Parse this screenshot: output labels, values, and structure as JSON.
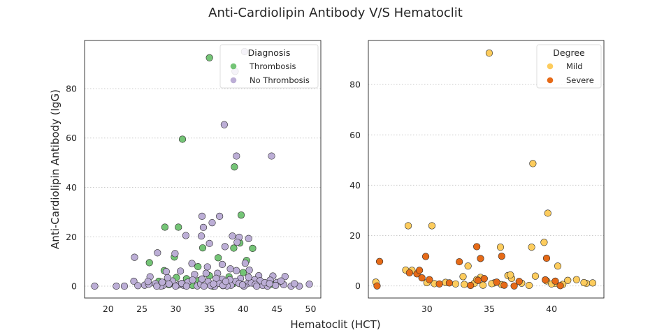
{
  "figure": {
    "suptitle": "Anti-Cardiolipin Antibody V/S Hematoclit",
    "supxlabel": "Hematoclit (HCT)",
    "background": "#ffffff"
  },
  "chart_data": [
    {
      "type": "scatter",
      "ylabel": "Anti-Cardiolipin Antibody (IgG)",
      "xlim": [
        16.5,
        51.5
      ],
      "ylim": [
        -4.8,
        99.5
      ],
      "xticks": [
        20,
        25,
        30,
        35,
        40,
        45,
        50
      ],
      "yticks": [
        0,
        20,
        40,
        60,
        80
      ],
      "grid": "horizontal-dotted",
      "legend": {
        "title": "Diagnosis",
        "placement": "top-right"
      },
      "series": [
        {
          "name": "Thrombosis",
          "color": "#74c476",
          "points": [
            [
              35.0,
              92.5
            ],
            [
              31.0,
              59.5
            ],
            [
              38.7,
              48.3
            ],
            [
              39.7,
              28.8
            ],
            [
              28.4,
              23.9
            ],
            [
              30.4,
              23.9
            ],
            [
              34.0,
              15.5
            ],
            [
              36.3,
              11.5
            ],
            [
              39.5,
              17.5
            ],
            [
              38.6,
              15.4
            ],
            [
              40.5,
              10.4
            ],
            [
              41.4,
              15.3
            ],
            [
              33.3,
              7.9
            ],
            [
              26.1,
              9.5
            ],
            [
              28.3,
              6.3
            ],
            [
              29.8,
              11.8
            ],
            [
              37.9,
              3.8
            ],
            [
              30.1,
              3.5
            ],
            [
              31.6,
              3.0
            ],
            [
              33.4,
              2.2
            ],
            [
              35.0,
              4.2
            ],
            [
              41.0,
              2.0
            ],
            [
              36.5,
              1.5
            ],
            [
              42.0,
              0.5
            ],
            [
              44.2,
              0.8
            ],
            [
              37.0,
              0.2
            ],
            [
              29.0,
              0.6
            ],
            [
              32.5,
              0.3
            ],
            [
              38.5,
              1.0
            ],
            [
              35.5,
              0.0
            ],
            [
              40.0,
              5.5
            ],
            [
              27.5,
              2.0
            ]
          ]
        },
        {
          "name": "No Thrombosis",
          "color": "#bcaed6",
          "points": [
            [
              37.2,
              65.4
            ],
            [
              39.0,
              52.7
            ],
            [
              44.2,
              52.7
            ],
            [
              38.8,
              87.0
            ],
            [
              40.2,
              95.0
            ],
            [
              33.9,
              28.3
            ],
            [
              35.4,
              25.7
            ],
            [
              34.1,
              23.8
            ],
            [
              36.5,
              28.3
            ],
            [
              31.5,
              20.5
            ],
            [
              33.8,
              20.3
            ],
            [
              38.4,
              20.3
            ],
            [
              39.4,
              19.8
            ],
            [
              40.8,
              19.3
            ],
            [
              35.0,
              17.3
            ],
            [
              37.3,
              16.0
            ],
            [
              39.1,
              17.8
            ],
            [
              23.9,
              11.7
            ],
            [
              27.3,
              13.5
            ],
            [
              29.9,
              13.2
            ],
            [
              32.4,
              9.2
            ],
            [
              34.7,
              7.8
            ],
            [
              36.9,
              8.8
            ],
            [
              40.3,
              9.3
            ],
            [
              26.2,
              3.8
            ],
            [
              28.6,
              5.9
            ],
            [
              30.7,
              6.1
            ],
            [
              32.8,
              4.7
            ],
            [
              34.5,
              5.2
            ],
            [
              36.2,
              5.2
            ],
            [
              39.0,
              6.3
            ],
            [
              40.9,
              6.5
            ],
            [
              42.3,
              4.2
            ],
            [
              44.4,
              4.1
            ],
            [
              46.2,
              3.9
            ],
            [
              45.0,
              1.5
            ],
            [
              18.0,
              0.0
            ],
            [
              21.2,
              0.0
            ],
            [
              22.4,
              0.0
            ],
            [
              23.8,
              2.0
            ],
            [
              25.4,
              0.4
            ],
            [
              27.0,
              1.0
            ],
            [
              28.1,
              0.2
            ],
            [
              29.5,
              2.1
            ],
            [
              30.4,
              0.5
            ],
            [
              31.8,
              1.6
            ],
            [
              33.2,
              0.1
            ],
            [
              34.8,
              1.8
            ],
            [
              35.8,
              0.0
            ],
            [
              36.9,
              2.8
            ],
            [
              38.2,
              0.4
            ],
            [
              39.6,
              3.1
            ],
            [
              40.6,
              1.0
            ],
            [
              41.7,
              2.6
            ],
            [
              42.9,
              0.3
            ],
            [
              44.0,
              2.4
            ],
            [
              46.0,
              0.6
            ],
            [
              47.1,
              0.0
            ],
            [
              48.3,
              0.0
            ],
            [
              49.8,
              0.8
            ],
            [
              26.0,
              0.8
            ],
            [
              27.8,
              0.0
            ],
            [
              29.0,
              0.9
            ],
            [
              31.2,
              0.3
            ],
            [
              32.5,
              2.5
            ],
            [
              33.7,
              0.9
            ],
            [
              35.2,
              0.2
            ],
            [
              36.4,
              1.2
            ],
            [
              37.6,
              0.1
            ],
            [
              38.9,
              2.0
            ],
            [
              40.1,
              0.0
            ],
            [
              41.2,
              1.3
            ],
            [
              42.5,
              2.2
            ],
            [
              43.6,
              0.0
            ],
            [
              45.6,
              2.1
            ],
            [
              24.4,
              0.2
            ],
            [
              25.9,
              1.9
            ],
            [
              28.8,
              3.4
            ],
            [
              30.9,
              1.1
            ],
            [
              33.9,
              2.9
            ],
            [
              37.0,
              0.3
            ],
            [
              39.4,
              1.1
            ],
            [
              41.8,
              0.7
            ],
            [
              44.8,
              0.3
            ],
            [
              47.6,
              1.0
            ],
            [
              27.2,
              0.0
            ],
            [
              34.2,
              0.0
            ],
            [
              36.0,
              3.2
            ],
            [
              38.0,
              2.6
            ],
            [
              40.8,
              3.6
            ],
            [
              43.2,
              1.4
            ],
            [
              28.0,
              1.6
            ],
            [
              30.0,
              0.0
            ],
            [
              31.6,
              0.0
            ],
            [
              35.6,
              0.9
            ],
            [
              37.4,
              1.9
            ],
            [
              39.9,
              0.5
            ],
            [
              42.0,
              0.0
            ],
            [
              43.9,
              1.0
            ],
            [
              38.1,
              7.0
            ]
          ]
        }
      ]
    },
    {
      "type": "scatter",
      "ylabel": "",
      "xlim": [
        25.3,
        44.2
      ],
      "ylim": [
        -4.8,
        97.5
      ],
      "xticks": [
        30,
        35,
        40
      ],
      "yticks": [
        0,
        20,
        40,
        60,
        80
      ],
      "grid": "horizontal-dotted",
      "legend": {
        "title": "Degree",
        "placement": "top-right"
      },
      "series": [
        {
          "name": "Mild",
          "color": "#fdcc5d",
          "points": [
            [
              35.0,
              92.5
            ],
            [
              38.5,
              48.6
            ],
            [
              39.7,
              28.9
            ],
            [
              28.5,
              23.9
            ],
            [
              30.4,
              23.9
            ],
            [
              39.4,
              17.3
            ],
            [
              35.9,
              15.4
            ],
            [
              38.4,
              15.4
            ],
            [
              33.3,
              7.9
            ],
            [
              40.5,
              7.9
            ],
            [
              28.3,
              6.3
            ],
            [
              28.8,
              6.2
            ],
            [
              34.3,
              3.4
            ],
            [
              36.5,
              4.1
            ],
            [
              38.7,
              3.9
            ],
            [
              41.3,
              2.2
            ],
            [
              42.0,
              2.5
            ],
            [
              25.9,
              1.5
            ],
            [
              30.0,
              1.3
            ],
            [
              30.6,
              0.9
            ],
            [
              31.5,
              1.4
            ],
            [
              32.3,
              0.8
            ],
            [
              33.0,
              0.6
            ],
            [
              33.8,
              1.0
            ],
            [
              34.5,
              0.3
            ],
            [
              35.4,
              1.2
            ],
            [
              36.0,
              0.5
            ],
            [
              36.8,
              3.0
            ],
            [
              37.6,
              1.1
            ],
            [
              38.2,
              0.2
            ],
            [
              39.6,
              2.0
            ],
            [
              40.3,
              1.0
            ],
            [
              40.9,
              0.6
            ],
            [
              42.8,
              1.0
            ],
            [
              43.3,
              1.2
            ],
            [
              32.9,
              3.7
            ],
            [
              34.0,
              2.5
            ],
            [
              35.2,
              0.9
            ],
            [
              36.7,
              4.4
            ],
            [
              40.0,
              0.8
            ],
            [
              42.6,
              1.3
            ]
          ]
        },
        {
          "name": "Severe",
          "color": "#e66a17",
          "points": [
            [
              26.2,
              9.7
            ],
            [
              29.9,
              11.7
            ],
            [
              32.6,
              9.6
            ],
            [
              34.0,
              15.6
            ],
            [
              34.3,
              10.9
            ],
            [
              36.0,
              11.8
            ],
            [
              39.6,
              11.0
            ],
            [
              28.6,
              5.2
            ],
            [
              29.2,
              4.8
            ],
            [
              29.4,
              6.2
            ],
            [
              29.6,
              3.2
            ],
            [
              26.0,
              0.0
            ],
            [
              31.0,
              0.8
            ],
            [
              31.8,
              1.2
            ],
            [
              33.5,
              0.2
            ],
            [
              34.1,
              2.2
            ],
            [
              34.6,
              2.9
            ],
            [
              35.6,
              1.5
            ],
            [
              36.2,
              0.3
            ],
            [
              37.0,
              0.0
            ],
            [
              37.4,
              1.8
            ],
            [
              39.5,
              2.4
            ],
            [
              40.3,
              1.9
            ],
            [
              40.7,
              0.1
            ],
            [
              30.2,
              2.5
            ]
          ]
        }
      ]
    }
  ]
}
